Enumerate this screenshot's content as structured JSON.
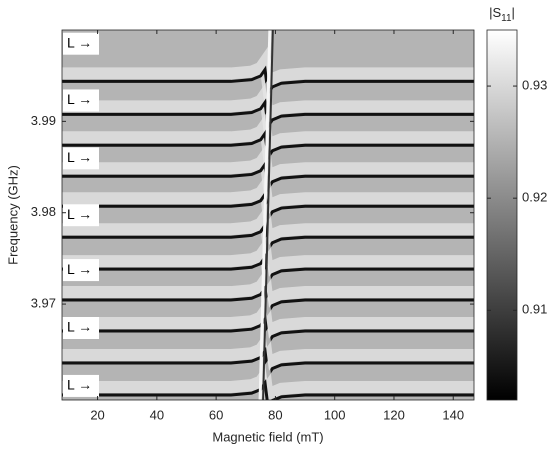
{
  "chart_data": {
    "type": "heatmap",
    "xlabel": "Magnetic field (mT)",
    "ylabel": "Frequency (GHz)",
    "xlim": [
      8,
      147
    ],
    "ylim": [
      3.9595,
      4.0
    ],
    "xticks": [
      20,
      40,
      60,
      80,
      100,
      120,
      140
    ],
    "yticks": [
      3.97,
      3.98,
      3.99
    ],
    "clim": [
      0.902,
      0.935
    ],
    "cticks": [
      0.91,
      0.92,
      0.93
    ],
    "colorbar_label_parts": [
      "|S",
      "11",
      "|"
    ],
    "colormap": [
      "#000000",
      "#ffffff"
    ],
    "background_color": "#b4b4b4",
    "line_color": "#111111",
    "x": [
      8,
      65,
      72,
      75,
      76.5,
      77.5,
      79,
      82,
      90,
      147
    ],
    "series": [
      {
        "values": [
          3.99437,
          3.99437,
          3.99457,
          3.99497,
          3.99567,
          3.99307,
          3.99377,
          3.99417,
          3.99437,
          3.99437
        ]
      },
      {
        "values": [
          3.99077,
          3.99077,
          3.99097,
          3.99137,
          3.99207,
          3.98947,
          3.99017,
          3.99057,
          3.99077,
          3.99077
        ]
      },
      {
        "values": [
          3.98738,
          3.98738,
          3.98758,
          3.98798,
          3.98868,
          3.98608,
          3.98678,
          3.98718,
          3.98738,
          3.98738
        ]
      },
      {
        "values": [
          3.98399,
          3.98399,
          3.98419,
          3.98459,
          3.98529,
          3.98269,
          3.98339,
          3.98379,
          3.98399,
          3.98399
        ]
      },
      {
        "values": [
          3.98071,
          3.98071,
          3.98091,
          3.98131,
          3.98201,
          3.97941,
          3.98011,
          3.98051,
          3.98071,
          3.98071
        ]
      },
      {
        "values": [
          3.97732,
          3.97732,
          3.97752,
          3.97792,
          3.97862,
          3.97602,
          3.97672,
          3.97712,
          3.97732,
          3.97732
        ]
      },
      {
        "values": [
          3.97383,
          3.97383,
          3.97403,
          3.97443,
          3.97513,
          3.97253,
          3.97323,
          3.97363,
          3.97383,
          3.97383
        ]
      },
      {
        "values": [
          3.97044,
          3.97044,
          3.97064,
          3.97104,
          3.97174,
          3.96914,
          3.96984,
          3.97024,
          3.97044,
          3.97044
        ]
      },
      {
        "values": [
          3.96705,
          3.96705,
          3.96725,
          3.96765,
          3.96835,
          3.96575,
          3.96645,
          3.96685,
          3.96705,
          3.96705
        ]
      },
      {
        "values": [
          3.96355,
          3.96355,
          3.96375,
          3.96415,
          3.96485,
          3.96225,
          3.96295,
          3.96335,
          3.96355,
          3.96355
        ]
      },
      {
        "values": [
          3.96005,
          3.96005,
          3.96025,
          3.96065,
          3.96135,
          3.95875,
          3.95945,
          3.95985,
          3.96005,
          3.96005
        ]
      }
    ],
    "crossing": {
      "x": [
        75.5,
        78.8
      ],
      "values": [
        3.9595,
        4.0
      ]
    },
    "annotations": [
      {
        "text": "L →",
        "y": 3.9985
      },
      {
        "text": "L →",
        "y": 3.99229
      },
      {
        "text": "L →",
        "y": 3.98595
      },
      {
        "text": "L →",
        "y": 3.97973
      },
      {
        "text": "L →",
        "y": 3.97372
      },
      {
        "text": "L →",
        "y": 3.96738
      },
      {
        "text": "L →",
        "y": 3.96104
      }
    ]
  }
}
